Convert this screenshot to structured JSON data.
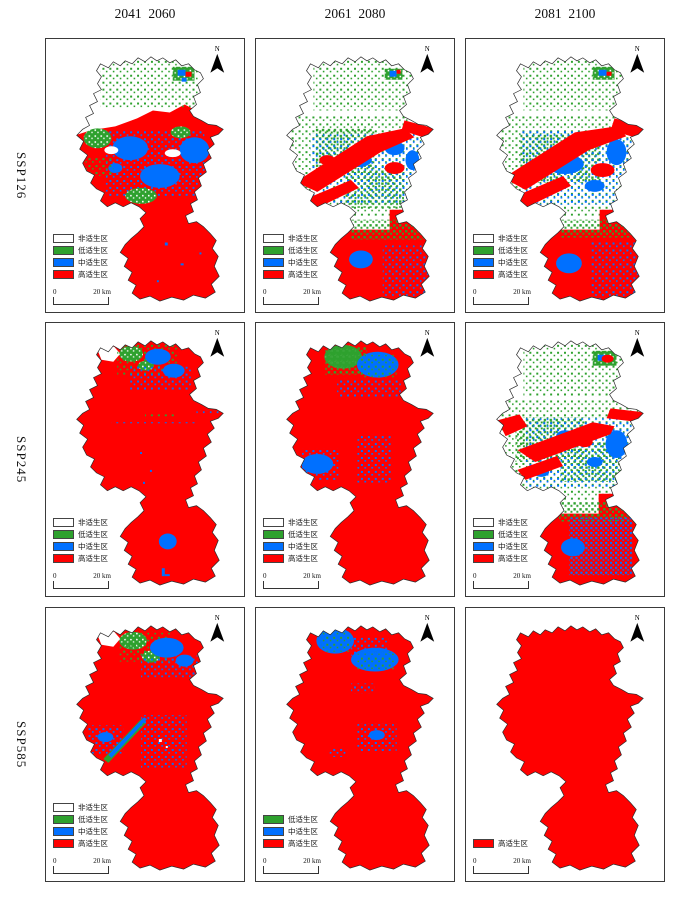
{
  "figure": {
    "columns": [
      "2041  2060",
      "2061  2080",
      "2081  2100"
    ],
    "row_labels": [
      "SSP126",
      "SSP245",
      "SSP585"
    ]
  },
  "north_label": "N",
  "scalebar": {
    "zero": "0",
    "distance": "20 km"
  },
  "legend_labels": {
    "non": "非适生区",
    "low": "低适生区",
    "mid": "中适生区",
    "high": "高适生区"
  },
  "colors": {
    "non": "#ffffff",
    "low": "#2ea12e",
    "mid": "#0070ff",
    "high": "#ff0000"
  },
  "panels": [
    {
      "scenario": "SSP126",
      "period": "2041  2060",
      "legend": [
        {
          "label": "非适生区",
          "color": "#ffffff"
        },
        {
          "label": "低适生区",
          "color": "#2ea12e"
        },
        {
          "label": "中适生区",
          "color": "#0070ff"
        },
        {
          "label": "高适生区",
          "color": "#ff0000"
        }
      ]
    },
    {
      "scenario": "SSP126",
      "period": "2061  2080",
      "legend": [
        {
          "label": "非适生区",
          "color": "#ffffff"
        },
        {
          "label": "低适生区",
          "color": "#2ea12e"
        },
        {
          "label": "中适生区",
          "color": "#0070ff"
        },
        {
          "label": "高适生区",
          "color": "#ff0000"
        }
      ]
    },
    {
      "scenario": "SSP126",
      "period": "2081  2100",
      "legend": [
        {
          "label": "非适生区",
          "color": "#ffffff"
        },
        {
          "label": "低适生区",
          "color": "#2ea12e"
        },
        {
          "label": "中适生区",
          "color": "#0070ff"
        },
        {
          "label": "高适生区",
          "color": "#ff0000"
        }
      ]
    },
    {
      "scenario": "SSP245",
      "period": "2041  2060",
      "legend": [
        {
          "label": "非适生区",
          "color": "#ffffff"
        },
        {
          "label": "低适生区",
          "color": "#2ea12e"
        },
        {
          "label": "中适生区",
          "color": "#0070ff"
        },
        {
          "label": "高适生区",
          "color": "#ff0000"
        }
      ]
    },
    {
      "scenario": "SSP245",
      "period": "2061  2080",
      "legend": [
        {
          "label": "非适生区",
          "color": "#ffffff"
        },
        {
          "label": "低适生区",
          "color": "#2ea12e"
        },
        {
          "label": "中适生区",
          "color": "#0070ff"
        },
        {
          "label": "高适生区",
          "color": "#ff0000"
        }
      ]
    },
    {
      "scenario": "SSP245",
      "period": "2081  2100",
      "legend": [
        {
          "label": "非适生区",
          "color": "#ffffff"
        },
        {
          "label": "低适生区",
          "color": "#2ea12e"
        },
        {
          "label": "中适生区",
          "color": "#0070ff"
        },
        {
          "label": "高适生区",
          "color": "#ff0000"
        }
      ]
    },
    {
      "scenario": "SSP585",
      "period": "2041  2060",
      "legend": [
        {
          "label": "非适生区",
          "color": "#ffffff"
        },
        {
          "label": "低适生区",
          "color": "#2ea12e"
        },
        {
          "label": "中适生区",
          "color": "#0070ff"
        },
        {
          "label": "高适生区",
          "color": "#ff0000"
        }
      ]
    },
    {
      "scenario": "SSP585",
      "period": "2061  2080",
      "legend": [
        {
          "label": "低适生区",
          "color": "#2ea12e"
        },
        {
          "label": "中适生区",
          "color": "#0070ff"
        },
        {
          "label": "高适生区",
          "color": "#ff0000"
        }
      ]
    },
    {
      "scenario": "SSP585",
      "period": "2081  2100",
      "legend": [
        {
          "label": "高适生区",
          "color": "#ff0000"
        }
      ]
    }
  ]
}
